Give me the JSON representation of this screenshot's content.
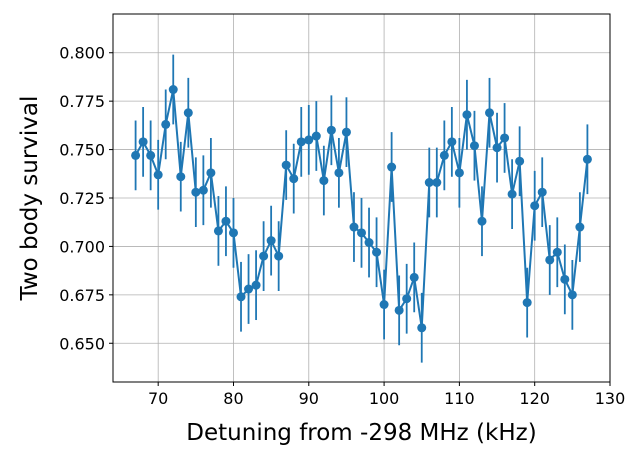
{
  "chart_data": {
    "type": "line",
    "title": "",
    "xlabel": "Detuning from -298 MHz (kHz)",
    "ylabel": "Two body survival",
    "xlim": [
      64,
      130
    ],
    "ylim": [
      0.63,
      0.82
    ],
    "grid": true,
    "xticks": [
      70,
      80,
      90,
      100,
      110,
      120,
      130
    ],
    "xtick_labels": [
      "70",
      "80",
      "90",
      "100",
      "110",
      "120",
      "130"
    ],
    "yticks": [
      0.65,
      0.675,
      0.7,
      0.725,
      0.75,
      0.775,
      0.8
    ],
    "ytick_labels": [
      "0.650",
      "0.675",
      "0.700",
      "0.725",
      "0.750",
      "0.775",
      "0.800"
    ],
    "color": "#1f77b4",
    "series": [
      {
        "x": [
          67,
          68,
          69,
          70,
          71,
          72,
          73,
          74,
          75,
          76,
          77,
          78,
          79,
          80,
          81,
          82,
          83,
          84,
          85,
          86,
          87,
          88,
          89,
          90,
          91,
          92,
          93,
          94,
          95,
          96,
          97,
          98,
          99,
          100,
          101,
          102,
          103,
          104,
          105,
          106,
          107,
          108,
          109,
          110,
          111,
          112,
          113,
          114,
          115,
          116,
          117,
          118,
          119,
          120,
          121,
          122,
          123,
          124,
          125,
          126,
          127
        ],
        "y": [
          0.747,
          0.754,
          0.747,
          0.737,
          0.763,
          0.781,
          0.736,
          0.769,
          0.728,
          0.729,
          0.738,
          0.708,
          0.713,
          0.707,
          0.674,
          0.678,
          0.68,
          0.695,
          0.703,
          0.695,
          0.742,
          0.735,
          0.754,
          0.755,
          0.757,
          0.734,
          0.76,
          0.738,
          0.759,
          0.71,
          0.707,
          0.702,
          0.697,
          0.67,
          0.741,
          0.667,
          0.673,
          0.684,
          0.658,
          0.733,
          0.733,
          0.747,
          0.754,
          0.738,
          0.768,
          0.752,
          0.713,
          0.769,
          0.751,
          0.756,
          0.727,
          0.744,
          0.671,
          0.721,
          0.728,
          0.693,
          0.697,
          0.683,
          0.675,
          0.71,
          0.745
        ],
        "yerr": [
          0.018,
          0.018,
          0.018,
          0.018,
          0.018,
          0.018,
          0.018,
          0.018,
          0.018,
          0.018,
          0.018,
          0.018,
          0.018,
          0.018,
          0.018,
          0.018,
          0.018,
          0.018,
          0.018,
          0.018,
          0.018,
          0.018,
          0.018,
          0.018,
          0.018,
          0.018,
          0.018,
          0.018,
          0.018,
          0.018,
          0.018,
          0.018,
          0.018,
          0.018,
          0.018,
          0.018,
          0.018,
          0.018,
          0.018,
          0.018,
          0.018,
          0.018,
          0.018,
          0.018,
          0.018,
          0.018,
          0.018,
          0.018,
          0.018,
          0.018,
          0.018,
          0.018,
          0.018,
          0.018,
          0.018,
          0.018,
          0.018,
          0.018,
          0.018,
          0.018,
          0.018
        ]
      }
    ]
  }
}
